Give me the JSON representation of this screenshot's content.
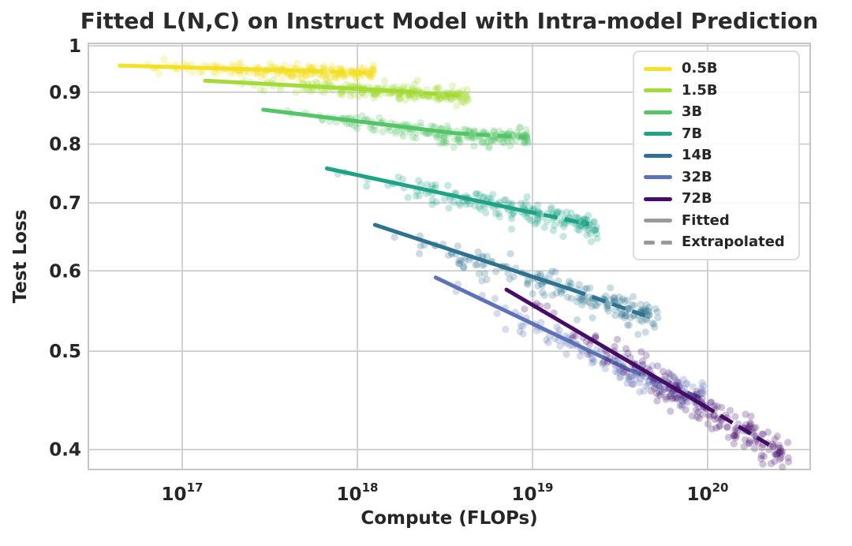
{
  "title": "Fitted L(N,C) on Instruct Model with Intra-model Prediction",
  "axes": {
    "x": {
      "label": "Compute (FLOPs)",
      "scale": "log",
      "min": 2.91e+16,
      "max": 3.85e+20,
      "ticks": [
        {
          "value": 1e+17,
          "label": "10^17",
          "mantissa": "10",
          "exponent": "17"
        },
        {
          "value": 1e+18,
          "label": "10^18",
          "mantissa": "10",
          "exponent": "18"
        },
        {
          "value": 1e+19,
          "label": "10^19",
          "mantissa": "10",
          "exponent": "19"
        },
        {
          "value": 1e+20,
          "label": "10^20",
          "mantissa": "10",
          "exponent": "20"
        }
      ]
    },
    "y": {
      "label": "Test Loss",
      "scale": "log",
      "min": 0.3823,
      "max": 1.0054,
      "ticks": [
        {
          "value": 1.0,
          "label": "1"
        },
        {
          "value": 0.9,
          "label": "0.9"
        },
        {
          "value": 0.8,
          "label": "0.8"
        },
        {
          "value": 0.7,
          "label": "0.7"
        },
        {
          "value": 0.6,
          "label": "0.6"
        },
        {
          "value": 0.5,
          "label": "0.5"
        },
        {
          "value": 0.4,
          "label": "0.4"
        }
      ]
    }
  },
  "legend": {
    "position": "upper right",
    "entries": [
      {
        "label": "0.5B",
        "color": "#f5e125",
        "style": "solid"
      },
      {
        "label": "1.5B",
        "color": "#a4db36",
        "style": "solid"
      },
      {
        "label": "3B",
        "color": "#54c568",
        "style": "solid"
      },
      {
        "label": "7B",
        "color": "#1fa386",
        "style": "solid"
      },
      {
        "label": "14B",
        "color": "#2e7290",
        "style": "solid"
      },
      {
        "label": "32B",
        "color": "#5e72b8",
        "style": "solid"
      },
      {
        "label": "72B",
        "color": "#450d67",
        "style": "solid"
      },
      {
        "label": "Fitted",
        "color": "#9a9a9a",
        "style": "solid"
      },
      {
        "label": "Extrapolated",
        "color": "#9a9a9a",
        "style": "dashed"
      }
    ]
  },
  "colors": {
    "grid": "#cccccc",
    "spine": "#c6c6c6",
    "text": "#262626",
    "title": "#2b2b2b",
    "background": "#ffffff",
    "fitted_gray": "#9a9a9a"
  },
  "chart_data": {
    "type": "scatter",
    "title": "Fitted L(N,C) on Instruct Model with Intra-model Prediction",
    "xlabel": "Compute (FLOPs)",
    "ylabel": "Test Loss",
    "x_scale": "log",
    "y_scale": "log",
    "xlim": [
      2.91e+16,
      3.85e+20
    ],
    "ylim": [
      0.3823,
      1.0054
    ],
    "grid": true,
    "legend_position": "upper right",
    "series": [
      {
        "name": "0.5B",
        "color": "#f5e125",
        "fit_line": {
          "compute": [
            4.4e+16,
            5.3e+17
          ],
          "loss": [
            0.956,
            0.9445
          ]
        },
        "extrapolated_line": {
          "compute": [
            5.3e+17,
            1.2e+18
          ],
          "loss": [
            0.9445,
            0.94
          ]
        },
        "scatter": {
          "n_points": 230,
          "compute_range": [
            4.4e+16,
            1.25e+18
          ],
          "loss_trend": [
            0.956,
            0.94
          ],
          "jitter_dex": 0.003,
          "bow_dex": 0.001
        }
      },
      {
        "name": "1.5B",
        "color": "#a4db36",
        "fit_line": {
          "compute": [
            1.35e+17,
            1.8e+18
          ],
          "loss": [
            0.924,
            0.902
          ]
        },
        "extrapolated_line": {
          "compute": [
            1.8e+18,
            4.05e+18
          ],
          "loss": [
            0.902,
            0.892
          ]
        },
        "scatter": {
          "n_points": 220,
          "compute_range": [
            1.35e+17,
            4.3e+18
          ],
          "loss_trend": [
            0.924,
            0.892
          ],
          "jitter_dex": 0.0035,
          "bow_dex": 0.0015
        }
      },
      {
        "name": "3B",
        "color": "#54c568",
        "fit_line": {
          "compute": [
            2.9e+17,
            3.6e+18
          ],
          "loss": [
            0.865,
            0.82
          ]
        },
        "extrapolated_line": {
          "compute": [
            3.6e+18,
            9.2e+18
          ],
          "loss": [
            0.82,
            0.812
          ]
        },
        "scatter": {
          "n_points": 200,
          "compute_range": [
            2.9e+17,
            9.7e+18
          ],
          "loss_trend": [
            0.865,
            0.812
          ],
          "jitter_dex": 0.0045,
          "bow_dex": 0.002
        }
      },
      {
        "name": "7B",
        "color": "#1fa386",
        "fit_line": {
          "compute": [
            6.7e+17,
            8.8e+18
          ],
          "loss": [
            0.757,
            0.688
          ]
        },
        "extrapolated_line": {
          "compute": [
            8.8e+18,
            2.1e+19
          ],
          "loss": [
            0.688,
            0.667
          ]
        },
        "scatter": {
          "n_points": 190,
          "compute_range": [
            6.7e+17,
            2.35e+19
          ],
          "loss_trend": [
            0.757,
            0.667
          ],
          "jitter_dex": 0.006,
          "bow_dex": 0.003
        }
      },
      {
        "name": "14B",
        "color": "#2e7290",
        "fit_line": {
          "compute": [
            1.26e+18,
            1.68e+19
          ],
          "loss": [
            0.666,
            0.575
          ]
        },
        "extrapolated_line": {
          "compute": [
            1.68e+19,
            4.4e+19
          ],
          "loss": [
            0.575,
            0.542
          ]
        },
        "scatter": {
          "n_points": 190,
          "compute_range": [
            1.26e+18,
            5.2e+19
          ],
          "loss_trend": [
            0.666,
            0.542
          ],
          "jitter_dex": 0.0065,
          "bow_dex": 0.003
        }
      },
      {
        "name": "32B",
        "color": "#5e72b8",
        "fit_line": {
          "compute": [
            2.8e+18,
            3.5e+19
          ],
          "loss": [
            0.591,
            0.48
          ]
        },
        "extrapolated_line": {
          "compute": [
            3.5e+19,
            9.3e+19
          ],
          "loss": [
            0.48,
            0.449
          ]
        },
        "scatter": {
          "n_points": 170,
          "compute_range": [
            2.8e+18,
            1e+20
          ],
          "loss_trend": [
            0.591,
            0.449
          ],
          "jitter_dex": 0.0065,
          "bow_dex": 0.003
        }
      },
      {
        "name": "72B",
        "color": "#450d67",
        "fit_line": {
          "compute": [
            7.1e+18,
            9.3e+19
          ],
          "loss": [
            0.575,
            0.443
          ]
        },
        "extrapolated_line": {
          "compute": [
            9.3e+19,
            2.37e+20
          ],
          "loss": [
            0.443,
            0.402
          ]
        },
        "scatter": {
          "n_points": 210,
          "compute_range": [
            7.1e+18,
            2.9e+20
          ],
          "loss_trend": [
            0.575,
            0.402
          ],
          "jitter_dex": 0.009,
          "bow_dex": 0.004
        }
      }
    ]
  }
}
